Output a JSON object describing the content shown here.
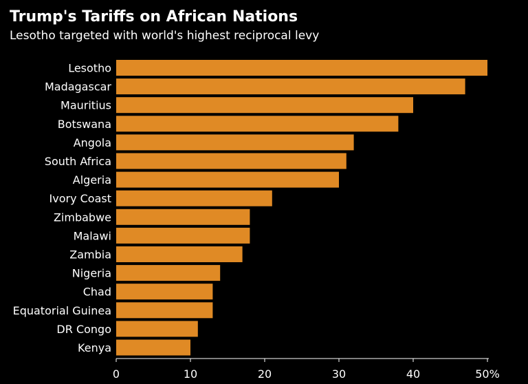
{
  "chart_data": {
    "type": "bar",
    "orientation": "horizontal",
    "title": "Trump's Tariffs on African Nations",
    "subtitle": "Lesotho targeted with world's highest reciprocal levy",
    "categories": [
      "Lesotho",
      "Madagascar",
      "Mauritius",
      "Botswana",
      "Angola",
      "South Africa",
      "Algeria",
      "Ivory Coast",
      "Zimbabwe",
      "Malawi",
      "Zambia",
      "Nigeria",
      "Chad",
      "Equatorial Guinea",
      "DR Congo",
      "Kenya"
    ],
    "values": [
      50,
      47,
      40,
      38,
      32,
      31,
      30,
      21,
      18,
      18,
      17,
      14,
      13,
      13,
      11,
      10
    ],
    "xlim": [
      0,
      50
    ],
    "xticks": [
      0,
      10,
      20,
      30,
      40,
      50
    ],
    "xtick_labels": [
      "0",
      "10",
      "20",
      "30",
      "40",
      "50%"
    ],
    "grid": false,
    "colors": {
      "bar": "#e08a25",
      "background": "#000000",
      "text": "#ffffff",
      "axis": "#ffffff"
    }
  }
}
